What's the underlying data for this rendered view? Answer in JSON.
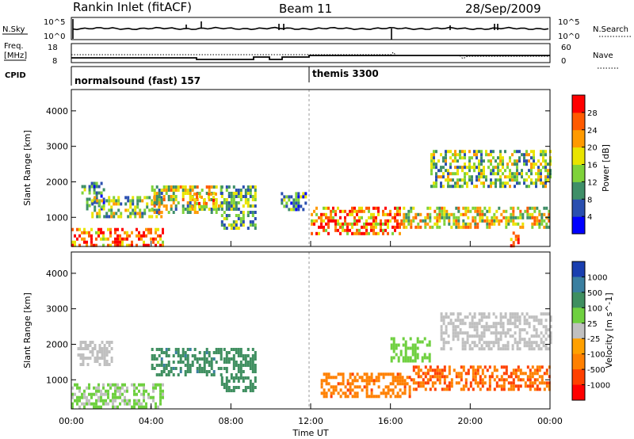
{
  "header": {
    "station": "Rankin Inlet (fitACF)",
    "beam": "Beam 11",
    "date": "28/Sep/2009"
  },
  "noise_panel": {
    "left_label": "N.Sky",
    "left_ticks": [
      "10^5",
      "10^0"
    ],
    "right_label": "N.Search",
    "right_ticks": [
      "10^5",
      "10^0"
    ]
  },
  "freq_panel": {
    "left_label_1": "Freq.",
    "left_label_2": "[MHz]",
    "left_ticks": [
      "18",
      "8"
    ],
    "right_label": "Nave",
    "right_ticks": [
      "60",
      "0"
    ]
  },
  "cpid_panel": {
    "label": "CPID",
    "modes": [
      {
        "name": "normalsound (fast) 157",
        "start_hour": 0
      },
      {
        "name": "themis 3300",
        "start_hour": 12
      }
    ]
  },
  "power_panel": {
    "ylabel": "Slant Range [km]",
    "yticks": [
      "1000",
      "2000",
      "3000",
      "4000"
    ],
    "colorbar_label": "Power [dB]",
    "colorbar_ticks": [
      "4",
      "8",
      "12",
      "16",
      "20",
      "24",
      "28"
    ]
  },
  "velocity_panel": {
    "ylabel": "Slant Range [km]",
    "yticks": [
      "1000",
      "2000",
      "3000",
      "4000"
    ],
    "colorbar_label": "Velocity [m s^-1]",
    "colorbar_ticks": [
      "1000",
      "500",
      "100",
      "25",
      "-25",
      "-100",
      "-500",
      "-1000"
    ]
  },
  "x_axis": {
    "label": "Time UT",
    "ticks": [
      "00:00",
      "04:00",
      "08:00",
      "12:00",
      "16:00",
      "20:00",
      "00:00"
    ]
  },
  "colors": {
    "power_scale": [
      "#0000ff",
      "#2a4fb0",
      "#3f8f68",
      "#7fd23a",
      "#e9e400",
      "#ff9a00",
      "#ff5a00",
      "#ff0000"
    ],
    "velocity_scale": [
      "#1a3fb0",
      "#3a7fa0",
      "#3f8f60",
      "#6fd040",
      "#c0c0c0",
      "#ffa000",
      "#ff8000",
      "#ff4000",
      "#ff0000"
    ]
  },
  "chart_data": [
    {
      "type": "heatmap",
      "title": "Power",
      "xlabel": "Time UT",
      "ylabel": "Slant Range [km]",
      "xlim": [
        0,
        24
      ],
      "ylim": [
        180,
        4600
      ],
      "colorbar": {
        "label": "Power [dB]",
        "range": [
          0,
          30
        ],
        "ticks": [
          4,
          8,
          12,
          16,
          20,
          24,
          28
        ]
      },
      "blobs": [
        {
          "t": [
            0.0,
            4.6
          ],
          "r": [
            200,
            700
          ],
          "value": 26
        },
        {
          "t": [
            0.5,
            1.6
          ],
          "r": [
            1200,
            2000
          ],
          "value": 10
        },
        {
          "t": [
            1.0,
            4.5
          ],
          "r": [
            1000,
            1600
          ],
          "value": 14
        },
        {
          "t": [
            4.0,
            7.5
          ],
          "r": [
            1100,
            1900
          ],
          "value": 16
        },
        {
          "t": [
            6.0,
            7.2
          ],
          "r": [
            1300,
            1700
          ],
          "value": 22
        },
        {
          "t": [
            7.5,
            9.2
          ],
          "r": [
            700,
            1900
          ],
          "value": 12
        },
        {
          "t": [
            10.5,
            11.8
          ],
          "r": [
            1200,
            1800
          ],
          "value": 10
        },
        {
          "t": [
            12.0,
            16.5
          ],
          "r": [
            500,
            1300
          ],
          "value": 24
        },
        {
          "t": [
            16.5,
            24.0
          ],
          "r": [
            700,
            1300
          ],
          "value": 18
        },
        {
          "t": [
            18.0,
            24.0
          ],
          "r": [
            1900,
            2900
          ],
          "value": 14
        },
        {
          "t": [
            22.0,
            22.4
          ],
          "r": [
            200,
            600
          ],
          "value": 28
        }
      ]
    },
    {
      "type": "heatmap",
      "title": "Velocity",
      "xlabel": "Time UT",
      "ylabel": "Slant Range [km]",
      "xlim": [
        0,
        24
      ],
      "ylim": [
        180,
        4600
      ],
      "colorbar": {
        "label": "Velocity [m s^-1]",
        "range": [
          -1000,
          1000
        ],
        "ticks": [
          1000,
          500,
          100,
          25,
          -25,
          -100,
          -500,
          -1000
        ]
      },
      "blobs": [
        {
          "t": [
            0.0,
            4.6
          ],
          "r": [
            200,
            900
          ],
          "value": 30
        },
        {
          "t": [
            0.3,
            2.0
          ],
          "r": [
            1400,
            2100
          ],
          "value": 0
        },
        {
          "t": [
            4.0,
            7.5
          ],
          "r": [
            1100,
            1900
          ],
          "value": 400
        },
        {
          "t": [
            7.5,
            9.2
          ],
          "r": [
            700,
            1900
          ],
          "value": 150
        },
        {
          "t": [
            12.5,
            17.0
          ],
          "r": [
            500,
            1200
          ],
          "value": -400
        },
        {
          "t": [
            17.0,
            24.0
          ],
          "r": [
            700,
            1400
          ],
          "value": -500
        },
        {
          "t": [
            18.5,
            24.0
          ],
          "r": [
            1900,
            2900
          ],
          "value": 0
        },
        {
          "t": [
            16.0,
            18.0
          ],
          "r": [
            1500,
            2200
          ],
          "value": 50
        }
      ]
    }
  ]
}
